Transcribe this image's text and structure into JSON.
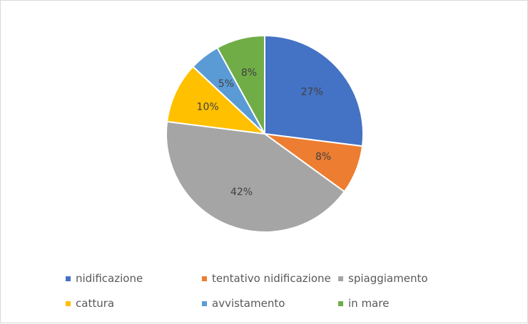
{
  "chart_data": {
    "type": "pie",
    "categories": [
      "nidificazione",
      "tentativo nidificazione",
      "spiaggiamento",
      "cattura",
      "avvistamento",
      "in mare"
    ],
    "values": [
      27,
      8,
      42,
      10,
      5,
      8
    ],
    "labels": [
      "27%",
      "8%",
      "42%",
      "10%",
      "5%",
      "8%"
    ],
    "colors": [
      "#4472c4",
      "#ed7d31",
      "#a5a5a5",
      "#ffc000",
      "#5b9bd5",
      "#70ad47"
    ],
    "legend_position": "bottom"
  }
}
